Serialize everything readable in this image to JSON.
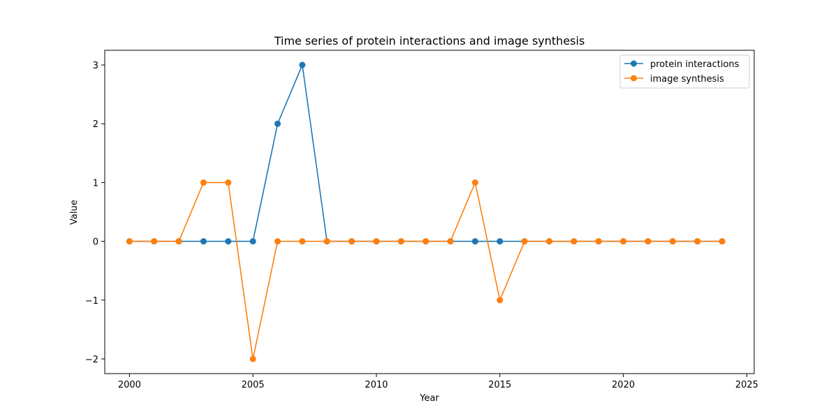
{
  "chart_data": {
    "type": "line",
    "title": "Time series of protein interactions and image synthesis",
    "xlabel": "Year",
    "ylabel": "Value",
    "xlim": [
      1999,
      2025.3
    ],
    "ylim": [
      -2.25,
      3.25
    ],
    "xticks": [
      2000,
      2005,
      2010,
      2015,
      2020,
      2025
    ],
    "yticks": [
      -2,
      -1,
      0,
      1,
      2,
      3
    ],
    "xtick_labels": [
      "2000",
      "2005",
      "2010",
      "2015",
      "2020",
      "2025"
    ],
    "ytick_labels": [
      "−2",
      "−1",
      "0",
      "1",
      "2",
      "3"
    ],
    "legend_position": "upper-right",
    "grid": false,
    "x": [
      2000,
      2001,
      2002,
      2003,
      2004,
      2005,
      2006,
      2007,
      2008,
      2009,
      2010,
      2011,
      2012,
      2013,
      2014,
      2015,
      2016,
      2017,
      2018,
      2019,
      2020,
      2021,
      2022,
      2023,
      2024
    ],
    "series": [
      {
        "name": "protein interactions",
        "color": "#1f77b4",
        "values": [
          0,
          0,
          0,
          0,
          0,
          0,
          2,
          3,
          0,
          0,
          0,
          0,
          0,
          0,
          0,
          0,
          0,
          0,
          0,
          0,
          0,
          0,
          0,
          0,
          0
        ]
      },
      {
        "name": "image synthesis",
        "color": "#ff7f0e",
        "values": [
          0,
          0,
          0,
          1,
          1,
          -2,
          0,
          0,
          0,
          0,
          0,
          0,
          0,
          0,
          1,
          -1,
          0,
          0,
          0,
          0,
          0,
          0,
          0,
          0,
          0
        ]
      }
    ]
  }
}
